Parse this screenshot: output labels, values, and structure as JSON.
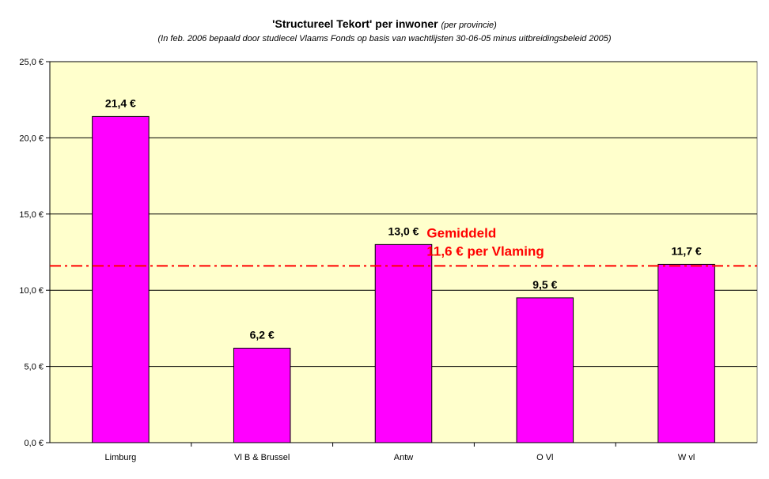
{
  "chart_data": {
    "type": "bar",
    "title": "'Structureel Tekort' per inwoner",
    "title_suffix": "(per provincie)",
    "subtitle": "(In feb. 2006 bepaald door studiecel Vlaams Fonds op basis van wachtlijsten 30-06-05 minus uitbreidingsbeleid 2005)",
    "categories": [
      "Limburg",
      "Vl B & Brussel",
      "Antw",
      "O Vl",
      "W vl"
    ],
    "values": [
      21.4,
      6.2,
      13.0,
      9.5,
      11.7
    ],
    "data_labels": [
      "21,4 €",
      "6,2 €",
      "13,0 €",
      "9,5 €",
      "11,7 €"
    ],
    "yticks": [
      0,
      5,
      10,
      15,
      20,
      25
    ],
    "ytick_labels": [
      "0,0 €",
      "5,0 €",
      "10,0 €",
      "15,0 €",
      "20,0 €",
      "25,0 €"
    ],
    "ylim": [
      0,
      25
    ],
    "grid": true,
    "xlabel": "",
    "ylabel": "",
    "average": {
      "value": 11.6,
      "label_line1": "Gemiddeld",
      "label_line2": "11,6 € per Vlaming"
    },
    "colors": {
      "bar": "#ff00ff",
      "plot_background": "#ffffcc",
      "average_line": "#ff0000",
      "average_label": "#ff0000"
    }
  }
}
